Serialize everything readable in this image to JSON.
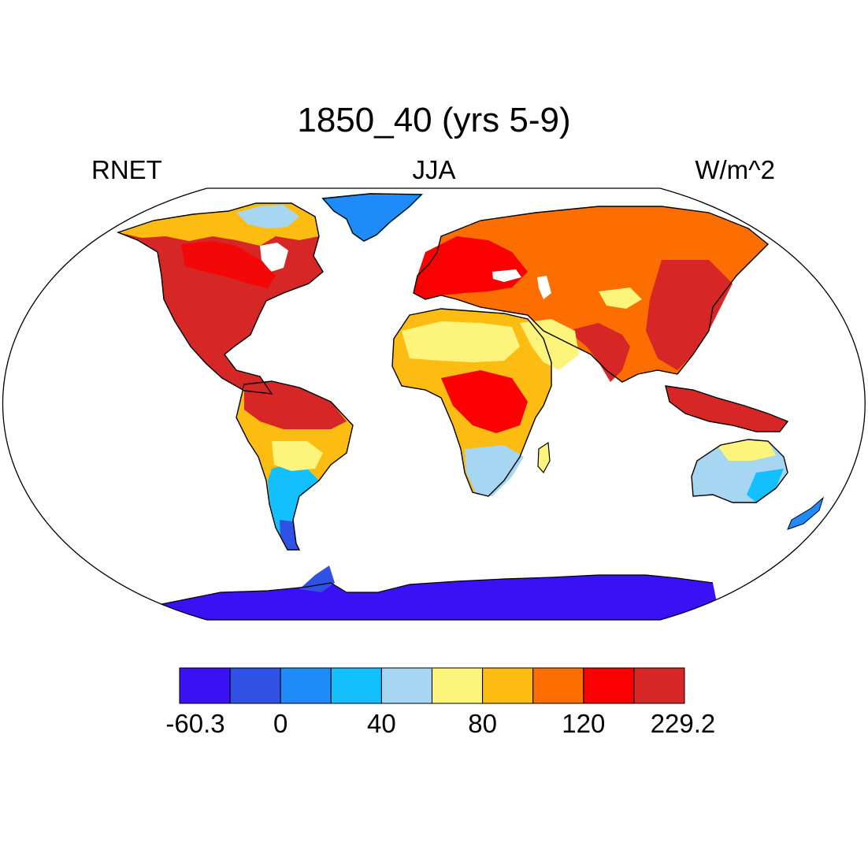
{
  "title": "1850_40 (yrs 5-9)",
  "left_string": "RNET",
  "center_string": "JJA",
  "right_string": "W/m^2",
  "colorbar": {
    "colors": [
      "#3a10f5",
      "#2f52e4",
      "#1f8bfb",
      "#13c0fd",
      "#a6d6f2",
      "#fdf47c",
      "#fdbc12",
      "#fd6e01",
      "#fb0000",
      "#d62726"
    ],
    "labels": [
      "-60.3",
      "0",
      "40",
      "80",
      "120",
      "229.2"
    ]
  }
}
